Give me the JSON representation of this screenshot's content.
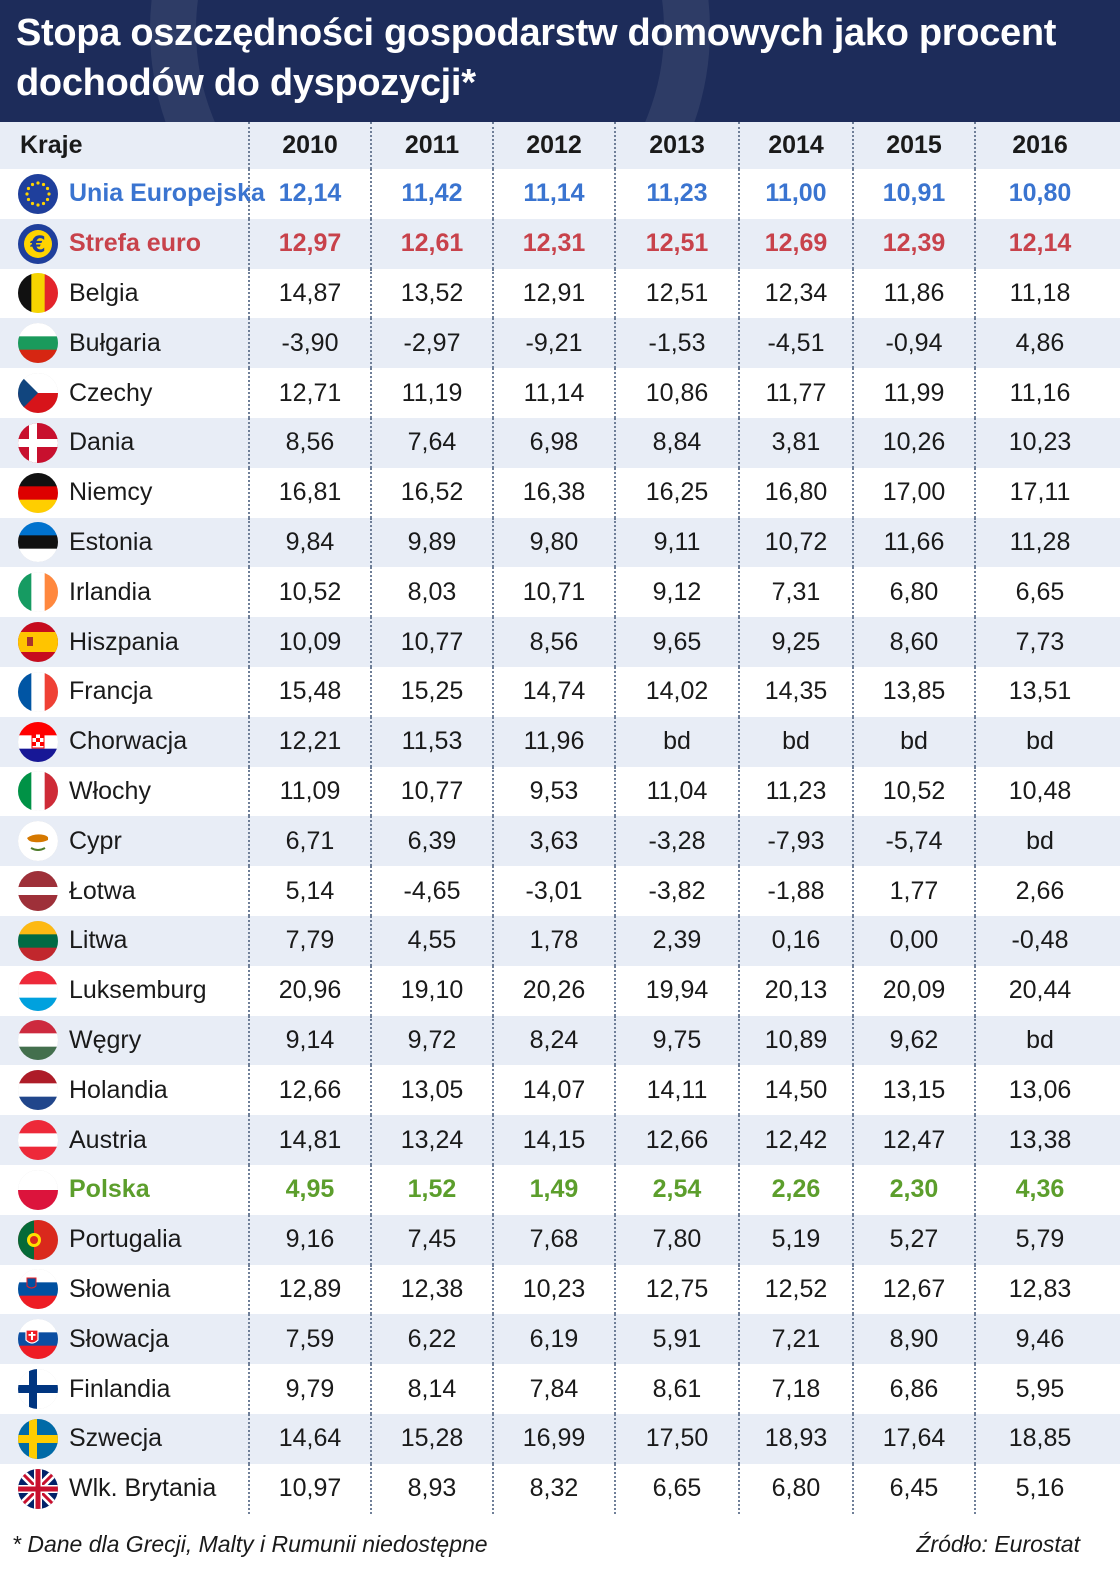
{
  "title": "Stopa oszczędności gospodarstw domowych jako procent dochodów do dyspozycji*",
  "colors": {
    "header_bg": "#1d2c5a",
    "stripe": "#e8edf6",
    "eu": "#3a74d0",
    "euro": "#c8424b",
    "poland": "#5c9e2c"
  },
  "chart_data": {
    "type": "table",
    "columns": [
      "Kraje",
      "2010",
      "2011",
      "2012",
      "2013",
      "2014",
      "2015",
      "2016"
    ],
    "rows": [
      {
        "country": "Unia Europejska",
        "flag": "eu-flag-icon",
        "style": "eu",
        "values": [
          "12,14",
          "11,42",
          "11,14",
          "11,23",
          "11,00",
          "10,91",
          "10,80"
        ]
      },
      {
        "country": "Strefa euro",
        "flag": "euro-sign-icon",
        "style": "euro",
        "values": [
          "12,97",
          "12,61",
          "12,31",
          "12,51",
          "12,69",
          "12,39",
          "12,14"
        ]
      },
      {
        "country": "Belgia",
        "flag": "belgium-flag-icon",
        "values": [
          "14,87",
          "13,52",
          "12,91",
          "12,51",
          "12,34",
          "11,86",
          "11,18"
        ]
      },
      {
        "country": "Bułgaria",
        "flag": "bulgaria-flag-icon",
        "values": [
          "-3,90",
          "-2,97",
          "-9,21",
          "-1,53",
          "-4,51",
          "-0,94",
          "4,86"
        ]
      },
      {
        "country": "Czechy",
        "flag": "czech-flag-icon",
        "values": [
          "12,71",
          "11,19",
          "11,14",
          "10,86",
          "11,77",
          "11,99",
          "11,16"
        ]
      },
      {
        "country": "Dania",
        "flag": "denmark-flag-icon",
        "values": [
          "8,56",
          "7,64",
          "6,98",
          "8,84",
          "3,81",
          "10,26",
          "10,23"
        ]
      },
      {
        "country": "Niemcy",
        "flag": "germany-flag-icon",
        "values": [
          "16,81",
          "16,52",
          "16,38",
          "16,25",
          "16,80",
          "17,00",
          "17,11"
        ]
      },
      {
        "country": "Estonia",
        "flag": "estonia-flag-icon",
        "values": [
          "9,84",
          "9,89",
          "9,80",
          "9,11",
          "10,72",
          "11,66",
          "11,28"
        ]
      },
      {
        "country": "Irlandia",
        "flag": "ireland-flag-icon",
        "values": [
          "10,52",
          "8,03",
          "10,71",
          "9,12",
          "7,31",
          "6,80",
          "6,65"
        ]
      },
      {
        "country": "Hiszpania",
        "flag": "spain-flag-icon",
        "values": [
          "10,09",
          "10,77",
          "8,56",
          "9,65",
          "9,25",
          "8,60",
          "7,73"
        ]
      },
      {
        "country": "Francja",
        "flag": "france-flag-icon",
        "values": [
          "15,48",
          "15,25",
          "14,74",
          "14,02",
          "14,35",
          "13,85",
          "13,51"
        ]
      },
      {
        "country": "Chorwacja",
        "flag": "croatia-flag-icon",
        "values": [
          "12,21",
          "11,53",
          "11,96",
          "bd",
          "bd",
          "bd",
          "bd"
        ]
      },
      {
        "country": "Włochy",
        "flag": "italy-flag-icon",
        "values": [
          "11,09",
          "10,77",
          "9,53",
          "11,04",
          "11,23",
          "10,52",
          "10,48"
        ]
      },
      {
        "country": "Cypr",
        "flag": "cyprus-flag-icon",
        "values": [
          "6,71",
          "6,39",
          "3,63",
          "-3,28",
          "-7,93",
          "-5,74",
          "bd"
        ]
      },
      {
        "country": "Łotwa",
        "flag": "latvia-flag-icon",
        "values": [
          "5,14",
          "-4,65",
          "-3,01",
          "-3,82",
          "-1,88",
          "1,77",
          "2,66"
        ]
      },
      {
        "country": "Litwa",
        "flag": "lithuania-flag-icon",
        "values": [
          "7,79",
          "4,55",
          "1,78",
          "2,39",
          "0,16",
          "0,00",
          "-0,48"
        ]
      },
      {
        "country": "Luksemburg",
        "flag": "luxembourg-flag-icon",
        "values": [
          "20,96",
          "19,10",
          "20,26",
          "19,94",
          "20,13",
          "20,09",
          "20,44"
        ]
      },
      {
        "country": "Węgry",
        "flag": "hungary-flag-icon",
        "values": [
          "9,14",
          "9,72",
          "8,24",
          "9,75",
          "10,89",
          "9,62",
          "bd"
        ]
      },
      {
        "country": "Holandia",
        "flag": "netherlands-flag-icon",
        "values": [
          "12,66",
          "13,05",
          "14,07",
          "14,11",
          "14,50",
          "13,15",
          "13,06"
        ]
      },
      {
        "country": "Austria",
        "flag": "austria-flag-icon",
        "values": [
          "14,81",
          "13,24",
          "14,15",
          "12,66",
          "12,42",
          "12,47",
          "13,38"
        ]
      },
      {
        "country": "Polska",
        "flag": "poland-flag-icon",
        "style": "pl",
        "values": [
          "4,95",
          "1,52",
          "1,49",
          "2,54",
          "2,26",
          "2,30",
          "4,36"
        ]
      },
      {
        "country": "Portugalia",
        "flag": "portugal-flag-icon",
        "values": [
          "9,16",
          "7,45",
          "7,68",
          "7,80",
          "5,19",
          "5,27",
          "5,79"
        ]
      },
      {
        "country": "Słowenia",
        "flag": "slovenia-flag-icon",
        "values": [
          "12,89",
          "12,38",
          "10,23",
          "12,75",
          "12,52",
          "12,67",
          "12,83"
        ]
      },
      {
        "country": "Słowacja",
        "flag": "slovakia-flag-icon",
        "values": [
          "7,59",
          "6,22",
          "6,19",
          "5,91",
          "7,21",
          "8,90",
          "9,46"
        ]
      },
      {
        "country": "Finlandia",
        "flag": "finland-flag-icon",
        "values": [
          "9,79",
          "8,14",
          "7,84",
          "8,61",
          "7,18",
          "6,86",
          "5,95"
        ]
      },
      {
        "country": "Szwecja",
        "flag": "sweden-flag-icon",
        "values": [
          "14,64",
          "15,28",
          "16,99",
          "17,50",
          "18,93",
          "17,64",
          "18,85"
        ]
      },
      {
        "country": "Wlk. Brytania",
        "flag": "uk-flag-icon",
        "values": [
          "10,97",
          "8,93",
          "8,32",
          "6,65",
          "6,80",
          "6,45",
          "5,16"
        ]
      }
    ]
  },
  "footnote": "* Dane dla Grecji, Malty i Rumunii niedostępne",
  "source": "Źródło: Eurostat"
}
